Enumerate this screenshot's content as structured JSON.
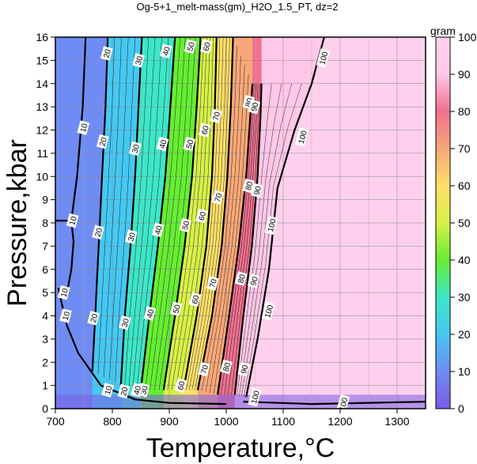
{
  "chart_data": {
    "type": "heatmap",
    "title": "Og-5+1_melt-mass(gm)_H2O_1.5_PT, dz=2",
    "xlabel": "Temperature,°C",
    "ylabel": "Pressure,kbar",
    "xlim": [
      700,
      1350
    ],
    "ylim": [
      0,
      16
    ],
    "x_ticks": [
      700,
      800,
      900,
      1000,
      1100,
      1200,
      1300
    ],
    "y_ticks": [
      0,
      1,
      2,
      3,
      4,
      5,
      6,
      7,
      8,
      9,
      10,
      11,
      12,
      13,
      14,
      15,
      16
    ],
    "grid": true,
    "colorbar": {
      "label": "gram",
      "range": [
        0,
        100
      ],
      "ticks": [
        0,
        10,
        20,
        30,
        40,
        50,
        60,
        70,
        80,
        90,
        100
      ],
      "colors": [
        "#7a5ce6",
        "#6f8cf4",
        "#46c8f2",
        "#3ee6c8",
        "#66ee33",
        "#d8f04a",
        "#ffe06a",
        "#f8a878",
        "#f07090",
        "#ffc8e8",
        "#ffd0ee"
      ]
    },
    "contour_interval": 2,
    "labeled_contours": [
      {
        "value": 10,
        "points": [
          [
            705,
            5.2
          ],
          [
            720,
            3.6
          ],
          [
            740,
            2.4
          ],
          [
            780,
            1.0
          ],
          [
            840,
            0.4
          ],
          [
            900,
            0.25
          ],
          [
            1000,
            0.2
          ]
        ]
      },
      {
        "value": 10,
        "points": [
          [
            700,
            8.1
          ],
          [
            728,
            8.1
          ],
          [
            732,
            7.2
          ],
          [
            728,
            6.0
          ],
          [
            722,
            5.2
          ]
        ]
      },
      {
        "value": 10,
        "points": [
          [
            728,
            8.1
          ],
          [
            738,
            10
          ],
          [
            748,
            13
          ],
          [
            753,
            16
          ]
        ]
      },
      {
        "value": 20,
        "points": [
          [
            765,
            1.6
          ],
          [
            770,
            4
          ],
          [
            778,
            8
          ],
          [
            782,
            10
          ],
          [
            788,
            13
          ],
          [
            792,
            16
          ]
        ]
      },
      {
        "value": 30,
        "points": [
          [
            815,
            1.0
          ],
          [
            822,
            4
          ],
          [
            832,
            7
          ],
          [
            840,
            10
          ],
          [
            846,
            13
          ],
          [
            852,
            16
          ]
        ]
      },
      {
        "value": 40,
        "points": [
          [
            850,
            0.8
          ],
          [
            865,
            4
          ],
          [
            880,
            7
          ],
          [
            893,
            10
          ],
          [
            902,
            13
          ],
          [
            910,
            16
          ]
        ]
      },
      {
        "value": 50,
        "points": [
          [
            890,
            0.8
          ],
          [
            910,
            4
          ],
          [
            927,
            7
          ],
          [
            940,
            10
          ],
          [
            948,
            13
          ],
          [
            955,
            16
          ]
        ]
      },
      {
        "value": 60,
        "points": [
          [
            925,
            0.8
          ],
          [
            948,
            4
          ],
          [
            965,
            7
          ],
          [
            975,
            10
          ],
          [
            980,
            13
          ],
          [
            983,
            16
          ]
        ]
      },
      {
        "value": 70,
        "points": [
          [
            950,
            0.8
          ],
          [
            975,
            4
          ],
          [
            992,
            7
          ],
          [
            1002,
            10
          ],
          [
            1008,
            13
          ],
          [
            1012,
            16
          ]
        ]
      },
      {
        "value": 80,
        "points": [
          [
            985,
            0.6
          ],
          [
            1005,
            4
          ],
          [
            1022,
            7
          ],
          [
            1035,
            10
          ],
          [
            1042,
            12.5
          ],
          [
            1046,
            14
          ]
        ]
      },
      {
        "value": 90,
        "points": [
          [
            1015,
            0.6
          ],
          [
            1030,
            4
          ],
          [
            1045,
            7
          ],
          [
            1055,
            10
          ],
          [
            1060,
            12.5
          ],
          [
            1062,
            14
          ]
        ]
      },
      {
        "value": 100,
        "points": [
          [
            1035,
            0.5
          ],
          [
            1055,
            3
          ],
          [
            1075,
            6
          ],
          [
            1090,
            9.5
          ],
          [
            1120,
            12
          ],
          [
            1150,
            14
          ],
          [
            1172,
            16
          ]
        ]
      },
      {
        "value": 100,
        "points": [
          [
            1030,
            0.3
          ],
          [
            1150,
            0.2
          ],
          [
            1350,
            0.3
          ]
        ]
      }
    ],
    "contour_labels": [
      {
        "text": "10",
        "x": 749,
        "y": 12.1
      },
      {
        "text": "10",
        "x": 730,
        "y": 8.1
      },
      {
        "text": "10",
        "x": 715,
        "y": 5.0
      },
      {
        "text": "10",
        "x": 718,
        "y": 4.0
      },
      {
        "text": "10",
        "x": 792,
        "y": 0.8
      },
      {
        "text": "20",
        "x": 790,
        "y": 15.3
      },
      {
        "text": "20",
        "x": 783,
        "y": 11.5
      },
      {
        "text": "20",
        "x": 775,
        "y": 7.6
      },
      {
        "text": "20",
        "x": 767,
        "y": 3.9
      },
      {
        "text": "20",
        "x": 820,
        "y": 0.75
      },
      {
        "text": "30",
        "x": 846,
        "y": 15.0
      },
      {
        "text": "30",
        "x": 840,
        "y": 11.2
      },
      {
        "text": "30",
        "x": 833,
        "y": 7.4
      },
      {
        "text": "30",
        "x": 822,
        "y": 3.7
      },
      {
        "text": "30",
        "x": 855,
        "y": 0.8
      },
      {
        "text": "40",
        "x": 894,
        "y": 15.4
      },
      {
        "text": "40",
        "x": 888,
        "y": 11.4
      },
      {
        "text": "40",
        "x": 880,
        "y": 7.7
      },
      {
        "text": "40",
        "x": 866,
        "y": 4.1
      },
      {
        "text": "40",
        "x": 843,
        "y": 0.8
      },
      {
        "text": "50",
        "x": 937,
        "y": 15.6
      },
      {
        "text": "50",
        "x": 935,
        "y": 11.4
      },
      {
        "text": "50",
        "x": 928,
        "y": 7.9
      },
      {
        "text": "50",
        "x": 912,
        "y": 4.3
      },
      {
        "text": "60",
        "x": 965,
        "y": 15.6
      },
      {
        "text": "60",
        "x": 962,
        "y": 12.0
      },
      {
        "text": "60",
        "x": 957,
        "y": 8.3
      },
      {
        "text": "60",
        "x": 945,
        "y": 4.7
      },
      {
        "text": "60",
        "x": 920,
        "y": 1.0
      },
      {
        "text": "70",
        "x": 982,
        "y": 12.6
      },
      {
        "text": "70",
        "x": 985,
        "y": 9.1
      },
      {
        "text": "70",
        "x": 976,
        "y": 5.4
      },
      {
        "text": "70",
        "x": 961,
        "y": 1.7
      },
      {
        "text": "80",
        "x": 1039,
        "y": 13.2
      },
      {
        "text": "80",
        "x": 1039,
        "y": 9.6
      },
      {
        "text": "80",
        "x": 1026,
        "y": 5.6
      },
      {
        "text": "80",
        "x": 1000,
        "y": 1.8
      },
      {
        "text": "90",
        "x": 1049,
        "y": 13.0
      },
      {
        "text": "90",
        "x": 1054,
        "y": 9.4
      },
      {
        "text": "90",
        "x": 1048,
        "y": 5.5
      },
      {
        "text": "90",
        "x": 1031,
        "y": 1.7
      },
      {
        "text": "100",
        "x": 1170,
        "y": 15.1
      },
      {
        "text": "100",
        "x": 1133,
        "y": 11.7
      },
      {
        "text": "100",
        "x": 1079,
        "y": 7.9
      },
      {
        "text": "100",
        "x": 1074,
        "y": 4.2
      },
      {
        "text": "100",
        "x": 1050,
        "y": 0.5
      },
      {
        "text": "100",
        "x": 1205,
        "y": 0.2
      }
    ]
  }
}
